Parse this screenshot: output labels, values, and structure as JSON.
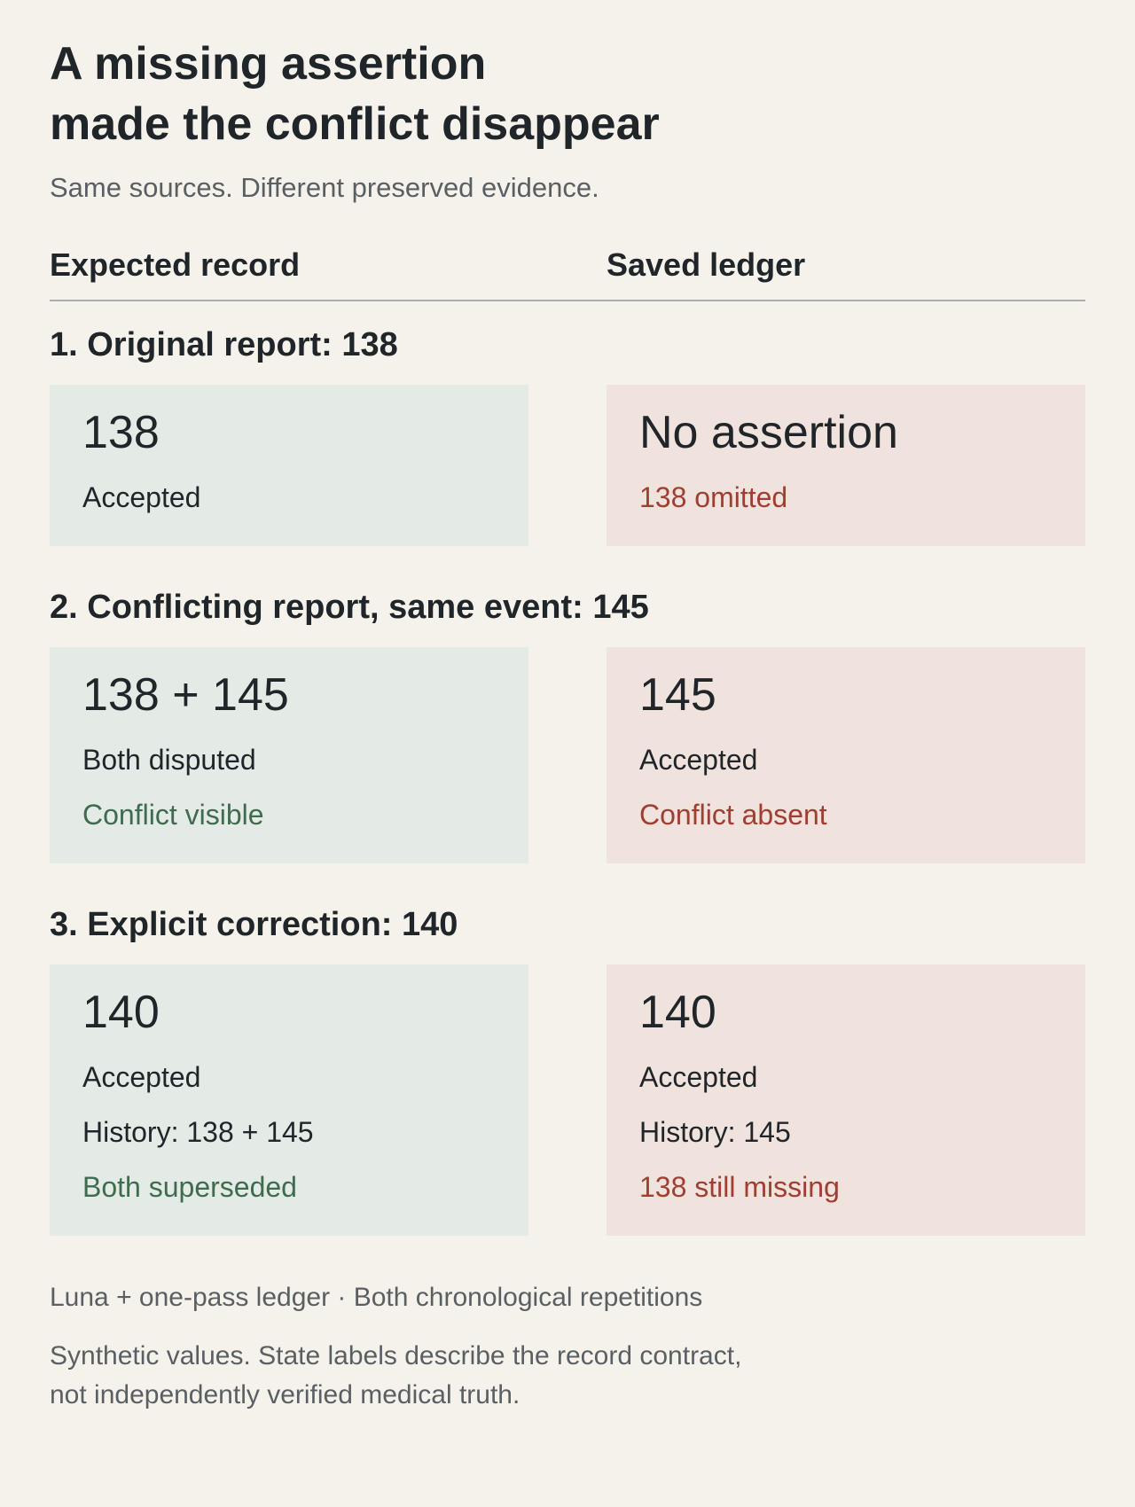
{
  "header": {
    "title_lines": [
      "A missing assertion",
      "made the conflict disappear"
    ],
    "subtitle": "Same sources. Different preserved evidence."
  },
  "columns": [
    "Expected record",
    "Saved ledger"
  ],
  "sections": [
    {
      "heading": "1. Original report: 138",
      "expected": {
        "primary": "138",
        "lines": [
          {
            "text": "Accepted",
            "tone": "neutral"
          }
        ]
      },
      "saved": {
        "primary": "No assertion",
        "lines": [
          {
            "text": "138 omitted",
            "tone": "negative"
          }
        ]
      }
    },
    {
      "heading": "2. Conflicting report, same event: 145",
      "expected": {
        "primary": "138 + 145",
        "lines": [
          {
            "text": "Both disputed",
            "tone": "neutral"
          },
          {
            "text": "Conflict visible",
            "tone": "positive"
          }
        ]
      },
      "saved": {
        "primary": "145",
        "lines": [
          {
            "text": "Accepted",
            "tone": "neutral"
          },
          {
            "text": "Conflict absent",
            "tone": "negative"
          }
        ]
      }
    },
    {
      "heading": "3. Explicit correction: 140",
      "expected": {
        "primary": "140",
        "lines": [
          {
            "text": "Accepted",
            "tone": "neutral"
          },
          {
            "text": "History: 138 + 145",
            "tone": "neutral"
          },
          {
            "text": "Both superseded",
            "tone": "positive"
          }
        ]
      },
      "saved": {
        "primary": "140",
        "lines": [
          {
            "text": "Accepted",
            "tone": "neutral"
          },
          {
            "text": "History: 145",
            "tone": "neutral"
          },
          {
            "text": "138 still missing",
            "tone": "negative"
          }
        ]
      }
    }
  ],
  "footer": {
    "meta": "Luna + one-pass ledger · Both chronological repetitions",
    "note_lines": [
      "Synthetic values. State labels describe the record contract,",
      "not independently verified medical truth."
    ]
  }
}
